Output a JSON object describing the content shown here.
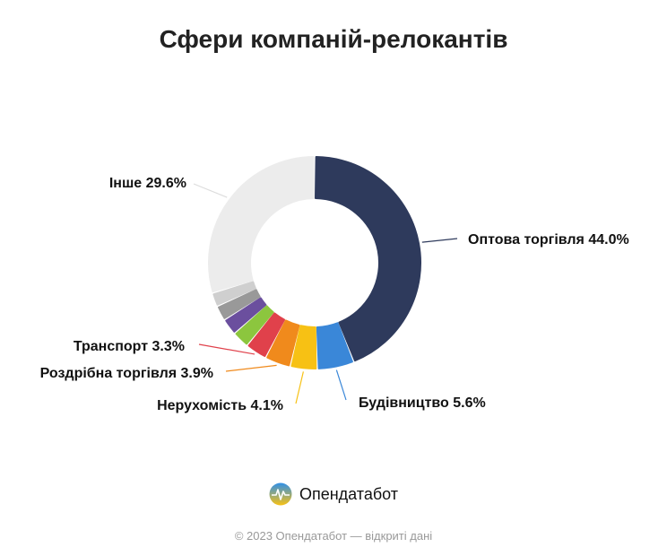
{
  "title": "Сфери компаній-релокантів",
  "chart_data": {
    "type": "pie",
    "title": "Сфери компаній-релокантів",
    "slices": [
      {
        "label": "Оптова торгівля 44.0%",
        "value": 44.0,
        "color": "#2e3a5c",
        "labeled": true
      },
      {
        "label": "Будівництво 5.6%",
        "value": 5.6,
        "color": "#3a87d8",
        "labeled": true
      },
      {
        "label": "Нерухомість 4.1%",
        "value": 4.1,
        "color": "#f7c114",
        "labeled": true
      },
      {
        "label": "Роздрібна торгівля 3.9%",
        "value": 3.9,
        "color": "#f08a1c",
        "labeled": true
      },
      {
        "label": "Транспорт 3.3%",
        "value": 3.3,
        "color": "#e0414b",
        "labeled": true
      },
      {
        "label": "",
        "value": 2.6,
        "color": "#8cc63e",
        "labeled": false
      },
      {
        "label": "",
        "value": 2.5,
        "color": "#6b4f9e",
        "labeled": false
      },
      {
        "label": "",
        "value": 2.3,
        "color": "#999999",
        "labeled": false
      },
      {
        "label": "",
        "value": 2.1,
        "color": "#cfcfcf",
        "labeled": false
      },
      {
        "label": "Інше 29.6%",
        "value": 29.6,
        "color": "#ececec",
        "labeled": true
      }
    ]
  },
  "brand": {
    "name": "Опендатабот"
  },
  "footer": "© 2023 Опендатабот — відкриті дані"
}
